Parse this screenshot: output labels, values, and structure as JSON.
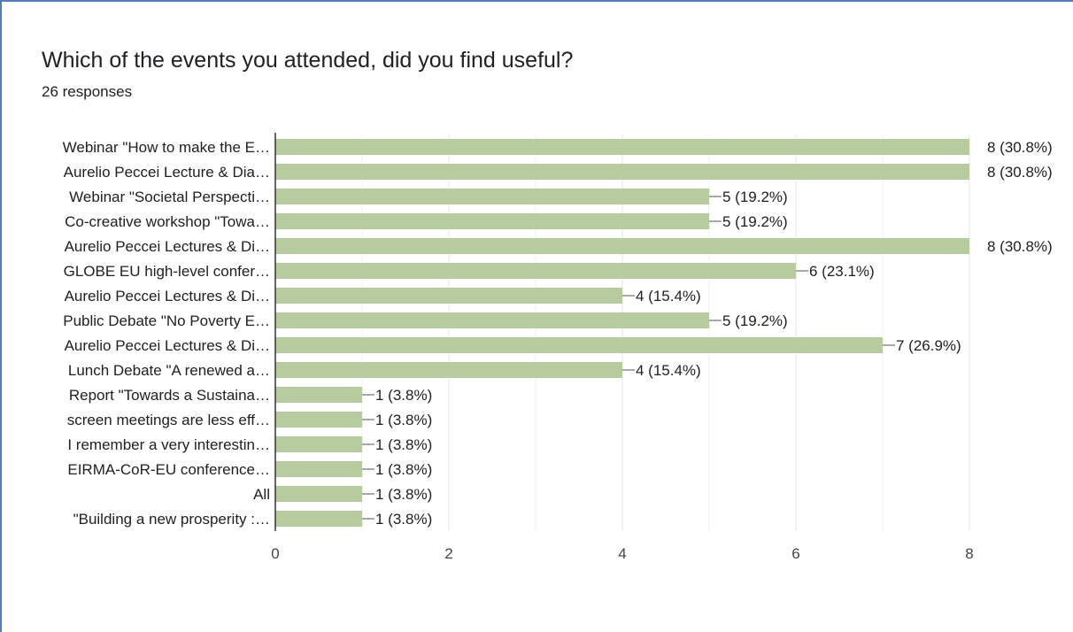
{
  "chart_data": {
    "type": "bar",
    "orientation": "horizontal",
    "title": "Which of the events you attended, did you find useful?",
    "subtitle": "26 responses",
    "xlabel": "",
    "ylabel": "",
    "xlim": [
      0,
      8
    ],
    "xticks": [
      "0",
      "2",
      "4",
      "6",
      "8"
    ],
    "grid": true,
    "bar_color": "#b6cc9e",
    "categories": [
      "Webinar \"How to make the E…",
      "Aurelio Peccei Lecture & Dia…",
      "Webinar \"Societal Perspecti…",
      "Co-creative workshop \"Towa…",
      "Aurelio Peccei Lectures & Di…",
      "GLOBE EU high-level confer…",
      "Aurelio Peccei Lectures & Di…",
      "Public Debate \"No Poverty E…",
      "Aurelio Peccei Lectures & Di…",
      "Lunch Debate \"A renewed a…",
      "Report \"Towards a Sustaina…",
      "screen meetings are less eff…",
      "I remember a very interestin…",
      "EIRMA-CoR-EU conference…",
      "All",
      "\"Building a new prosperity :…"
    ],
    "values": [
      8,
      8,
      5,
      5,
      8,
      6,
      4,
      5,
      7,
      4,
      1,
      1,
      1,
      1,
      1,
      1
    ],
    "data_labels": [
      "8 (30.8%)",
      "8 (30.8%)",
      "5 (19.2%)",
      "5 (19.2%)",
      "8 (30.8%)",
      "6 (23.1%)",
      "4 (15.4%)",
      "5 (19.2%)",
      "7 (26.9%)",
      "4 (15.4%)",
      "1 (3.8%)",
      "1 (3.8%)",
      "1 (3.8%)",
      "1 (3.8%)",
      "1 (3.8%)",
      "1 (3.8%)"
    ]
  }
}
